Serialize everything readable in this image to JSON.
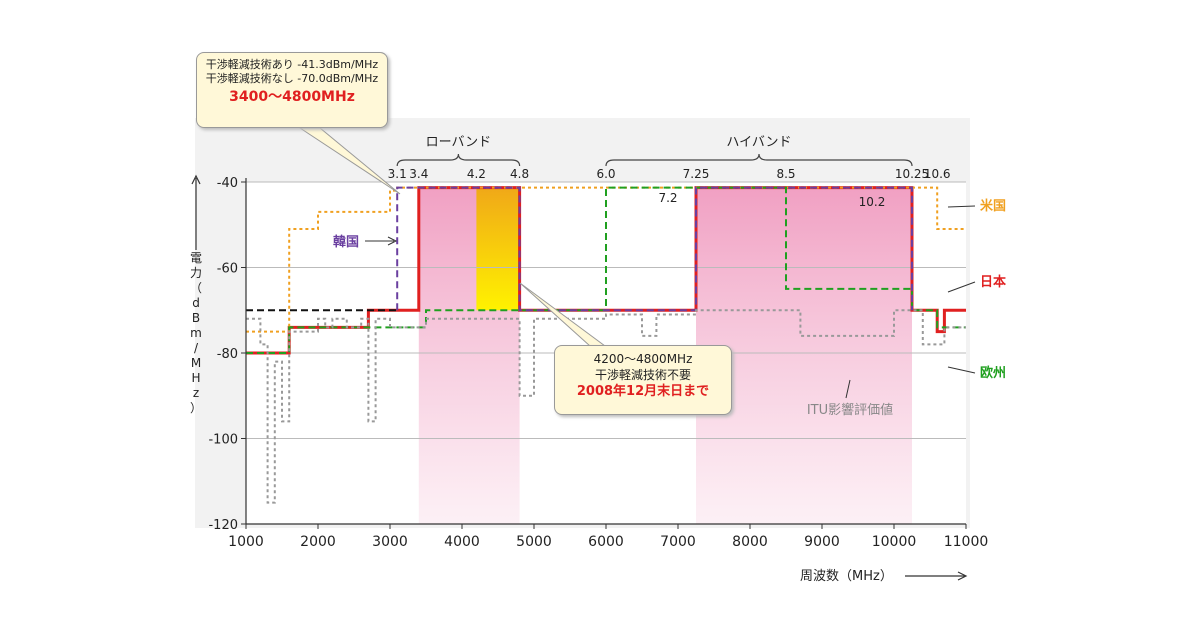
{
  "chart_data": {
    "type": "line",
    "title": "",
    "xlabel": "周波数（MHz）",
    "ylabel": "電力（dBm/MHz）",
    "xlim": [
      1000,
      11000
    ],
    "ylim": [
      -120,
      -40
    ],
    "xticks": [
      1000,
      2000,
      3000,
      4000,
      5000,
      6000,
      7000,
      8000,
      9000,
      10000,
      11000
    ],
    "yticks": [
      {
        "value": -40,
        "label": "-40"
      },
      {
        "value": -60,
        "label": "-60"
      },
      {
        "value": -80,
        "label": "-80"
      },
      {
        "value": -100,
        "label": "-100"
      },
      {
        "value": -120,
        "label": "-120"
      }
    ],
    "grid": true,
    "bands": [
      {
        "name": "ローバンド",
        "ticks": [
          "3.1",
          "3.4",
          "4.2",
          "4.8"
        ],
        "tick_x": [
          3100,
          3400,
          4200,
          4800
        ],
        "from": 3100,
        "to": 4800
      },
      {
        "name": "ハイバンド",
        "ticks": [
          "6.0",
          "7.25",
          "8.5",
          "10.25",
          "10.6"
        ],
        "tick_x": [
          6000,
          7250,
          8500,
          10250,
          10600
        ],
        "from": 6000,
        "to": 10250
      }
    ],
    "series": [
      {
        "name": "日本",
        "color": "#e02020",
        "style": "solid",
        "points": [
          [
            1000,
            -80
          ],
          [
            1600,
            -80
          ],
          [
            1600,
            -74
          ],
          [
            2700,
            -74
          ],
          [
            2700,
            -70
          ],
          [
            3400,
            -70
          ],
          [
            3400,
            -41.3
          ],
          [
            4800,
            -41.3
          ],
          [
            4800,
            -70
          ],
          [
            7250,
            -70
          ],
          [
            7250,
            -41.3
          ],
          [
            10250,
            -41.3
          ],
          [
            10250,
            -70
          ],
          [
            10600,
            -70
          ],
          [
            10600,
            -75
          ],
          [
            10700,
            -75
          ],
          [
            10700,
            -70
          ],
          [
            11000,
            -70
          ]
        ]
      },
      {
        "name": "米国",
        "color": "#f0a020",
        "style": "dotted",
        "points": [
          [
            1000,
            -75
          ],
          [
            1600,
            -75
          ],
          [
            1600,
            -51
          ],
          [
            2000,
            -51
          ],
          [
            2000,
            -47
          ],
          [
            3000,
            -47
          ],
          [
            3000,
            -42
          ],
          [
            3100,
            -42
          ],
          [
            3100,
            -41.3
          ],
          [
            10600,
            -41.3
          ],
          [
            10600,
            -51
          ],
          [
            11000,
            -51
          ]
        ]
      },
      {
        "name": "欧州",
        "color": "#20a020",
        "style": "dashed",
        "points": [
          [
            1000,
            -80
          ],
          [
            1600,
            -80
          ],
          [
            1600,
            -74
          ],
          [
            3500,
            -74
          ],
          [
            3500,
            -70
          ],
          [
            6000,
            -70
          ],
          [
            6000,
            -41.3
          ],
          [
            8500,
            -41.3
          ],
          [
            8500,
            -65
          ],
          [
            10250,
            -65
          ],
          [
            10250,
            -70
          ],
          [
            10600,
            -70
          ],
          [
            10600,
            -74
          ],
          [
            11000,
            -74
          ]
        ]
      },
      {
        "name": "韓国",
        "color": "#6a3fa0",
        "style": "dashed",
        "points": [
          [
            3100,
            -70
          ],
          [
            3100,
            -41.3
          ],
          [
            4800,
            -41.3
          ],
          [
            4800,
            -70
          ],
          [
            7250,
            -70
          ],
          [
            7250,
            -41.3
          ],
          [
            10250,
            -41.3
          ],
          [
            10250,
            -70
          ]
        ]
      },
      {
        "name": "",
        "color": "#111111",
        "style": "dashed",
        "points": [
          [
            1000,
            -70
          ],
          [
            3100,
            -70
          ]
        ]
      },
      {
        "name": "ITU影響評価値",
        "color": "#999999",
        "style": "dotted",
        "points": [
          [
            1000,
            -72
          ],
          [
            1200,
            -72
          ],
          [
            1200,
            -78
          ],
          [
            1300,
            -78
          ],
          [
            1300,
            -115
          ],
          [
            1400,
            -115
          ],
          [
            1400,
            -82
          ],
          [
            1500,
            -82
          ],
          [
            1500,
            -96
          ],
          [
            1600,
            -96
          ],
          [
            1600,
            -75
          ],
          [
            2000,
            -75
          ],
          [
            2000,
            -72
          ],
          [
            2100,
            -72
          ],
          [
            2100,
            -74
          ],
          [
            2200,
            -74
          ],
          [
            2200,
            -72
          ],
          [
            2400,
            -72
          ],
          [
            2400,
            -74
          ],
          [
            2600,
            -74
          ],
          [
            2600,
            -72
          ],
          [
            2700,
            -72
          ],
          [
            2700,
            -96
          ],
          [
            2800,
            -96
          ],
          [
            2800,
            -72
          ],
          [
            3000,
            -72
          ],
          [
            3000,
            -74
          ],
          [
            3500,
            -74
          ],
          [
            3500,
            -72
          ],
          [
            4800,
            -72
          ],
          [
            4800,
            -90
          ],
          [
            5000,
            -90
          ],
          [
            5000,
            -72
          ],
          [
            6000,
            -72
          ],
          [
            6000,
            -71
          ],
          [
            6500,
            -71
          ],
          [
            6500,
            -76
          ],
          [
            6700,
            -76
          ],
          [
            6700,
            -71
          ],
          [
            7250,
            -71
          ],
          [
            7250,
            -70
          ],
          [
            8700,
            -70
          ],
          [
            8700,
            -76
          ],
          [
            10000,
            -76
          ],
          [
            10000,
            -70
          ],
          [
            10400,
            -70
          ],
          [
            10400,
            -78
          ],
          [
            10700,
            -78
          ],
          [
            10700,
            -74
          ],
          [
            11000,
            -74
          ]
        ]
      }
    ],
    "highlight_bands": [
      {
        "from": 3400,
        "to": 4800,
        "kind": "pink"
      },
      {
        "from": 7250,
        "to": 10250,
        "kind": "pink"
      },
      {
        "from": 4200,
        "to": 4800,
        "kind": "gold"
      }
    ],
    "annotations": {
      "value_72": "7.2",
      "value_102": "10.2",
      "korea_label": "韓国",
      "us_label": "米国",
      "japan_label": "日本",
      "eu_label": "欧州",
      "itu_label": "ITU影響評価値",
      "callout_top": {
        "line1": "干渉軽減技術あり -41.3dBm/MHz",
        "line2": "干渉軽減技術なし -70.0dBm/MHz",
        "range": "3400～4800MHz"
      },
      "callout_bottom": {
        "line1": "4200～4800MHz",
        "line2": "干渉軽減技術不要",
        "line3": "2008年12月末日まで"
      }
    },
    "colors": {
      "japan": "#e02020",
      "us": "#f0a020",
      "eu": "#20a020",
      "korea": "#6a3fa0",
      "itu": "#999999",
      "pink": "#f2a6c8",
      "gold_top": "#f0a818",
      "gold_bottom": "#fff200",
      "callout_bg": "#fff8d8",
      "callout_red": "#e02020",
      "plot_bg": "#ffffff",
      "frame_bg": "#f0f0f0"
    }
  }
}
